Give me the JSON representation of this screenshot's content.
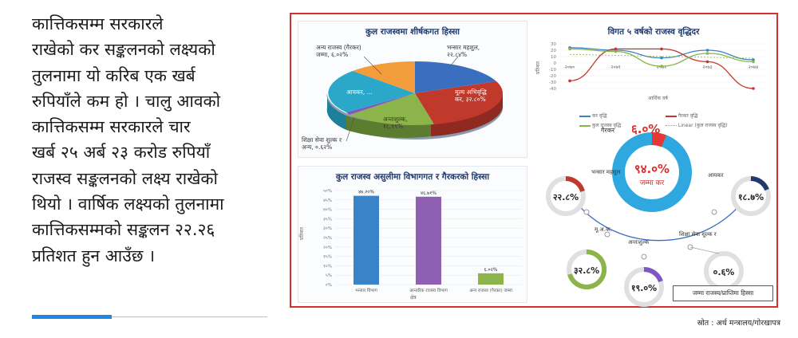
{
  "article": {
    "lines": [
      "कात्तिकसम्म सरकारले",
      "राखेको कर सङ्कलनको लक्ष्यको",
      "तुलनामा यो करिब एक खर्ब",
      "रुपियाँले कम हो । चालु आवको",
      "कात्तिकसम्म सरकारले चार",
      "खर्ब २५ अर्ब २३ करोड रुपियाँ",
      "राजस्व सङ्कलनको लक्ष्य राखेको",
      "थियो । वार्षिक लक्ष्यको तुलनामा",
      "कात्तिकसम्मको सङ्कलन २२.२६",
      "प्रतिशत हुन आउँछ ।"
    ]
  },
  "pie_panel": {
    "title": "कुल राजस्वमा शीर्षकगत हिस्सा",
    "labels": {
      "other": "अन्य राजस्व (गैरकर)",
      "other_value": "जम्मा, ६.०२%",
      "customs": "भन्सार महशुल,",
      "customs_value": "२२.८४%",
      "income": "आयकर, ...",
      "vat": "मूल्य अभिवृद्धि",
      "vat_value": "कर, ३२.८०%",
      "excise": "अन्तःशुल्क,",
      "excise_value": "१८.९९%",
      "education": "शिक्षा सेवा शुल्क र",
      "education_value": "अन्य, ०.६२%"
    }
  },
  "line_panel": {
    "title": "विगत ५ वर्षको राजस्व वृद्धिदर",
    "xlabel": "आर्थिक वर्ष",
    "ylabel": "प्रतिशत",
    "legend": [
      "कर वृद्धि",
      "गैरकर वृद्धि",
      "कुल राजस्व वृद्धि",
      "Linear (कुल राजस्व वृद्धि)"
    ]
  },
  "bar_panel": {
    "title": "कुल राजस्व असुलीमा विभागगत र गैरकरको हिस्सा",
    "xlabel": "क्षेत्र",
    "ylabel": "प्रतिशत"
  },
  "donut_panel": {
    "outer_label": "गैरकर",
    "outer_value": "६.०%",
    "center_value": "९४.०%",
    "center_label": "जम्मा कर",
    "items": [
      {
        "name": "भन्सार महसुल",
        "value": "२२.८%"
      },
      {
        "name": "आयकर",
        "value": "१८.७%"
      },
      {
        "name": "मू.अ.क.",
        "value": "३२.८%"
      },
      {
        "name": "अन्तःशुल्क",
        "value": "१९.०%"
      },
      {
        "name": "शिक्षा सेवा शुल्क र",
        "value": "०.६%"
      }
    ],
    "legend": "जम्मा राजस्व/प्राप्तिमा हिस्सा"
  },
  "source": "स्रोत : अर्थ मन्त्रालय/गोरखापत्र",
  "colors": {
    "border": "#d32f2f",
    "blue": "#3a83c9",
    "red": "#c0392b",
    "green": "#8bb54a",
    "purple": "#7e57c2",
    "orange": "#f39c3c",
    "teal": "#2aa7c9",
    "navy": "#203a6b"
  },
  "chart_data": [
    {
      "type": "pie",
      "title": "कुल राजस्वमा शीर्षकगत हिस्सा",
      "categories": [
        "भन्सार महशुल",
        "मूल्य अभिवृद्धि कर",
        "अन्तःशुल्क",
        "शिक्षा सेवा शुल्क र अन्य",
        "आयकर",
        "अन्य राजस्व (गैरकर) जम्मा"
      ],
      "values": [
        22.84,
        32.8,
        18.99,
        0.62,
        18.73,
        6.02
      ]
    },
    {
      "type": "line",
      "title": "विगत ५ वर्षको राजस्व वृद्धिदर",
      "xlabel": "आर्थिक वर्ष",
      "ylabel": "प्रतिशत",
      "x": [
        "२०७०",
        "२०७१",
        "२०७२",
        "२०७३",
        "२०७४"
      ],
      "ylim": [
        -40,
        30
      ],
      "series": [
        {
          "name": "कर वृद्धि",
          "values": [
            24,
            20,
            8,
            20,
            5
          ]
        },
        {
          "name": "गैरकर वृद्धि",
          "values": [
            -28,
            22,
            22,
            2,
            -40
          ]
        },
        {
          "name": "कुल राजस्व वृद्धि",
          "values": [
            22,
            18,
            -5,
            15,
            2
          ]
        }
      ]
    },
    {
      "type": "bar",
      "title": "कुल राजस्व असुलीमा विभागगत र गैरकरको हिस्सा",
      "xlabel": "क्षेत्र",
      "ylabel": "प्रतिशत",
      "categories": [
        "भन्सार विभाग",
        "आन्तरिक राजस्व विभाग",
        "अन्य राजस्व (गैरकर) जम्मा"
      ],
      "values": [
        47.2,
        46.7,
        6.0
      ],
      "value_labels": [
        "४७.२०%",
        "४६.७१%",
        "६.०२%"
      ],
      "ylim": [
        0,
        50
      ],
      "yticks": [
        "०%",
        "५%",
        "१०%",
        "१५%",
        "२०%",
        "२५%",
        "३०%",
        "३५%",
        "४०%",
        "४५%",
        "५०%"
      ]
    }
  ]
}
